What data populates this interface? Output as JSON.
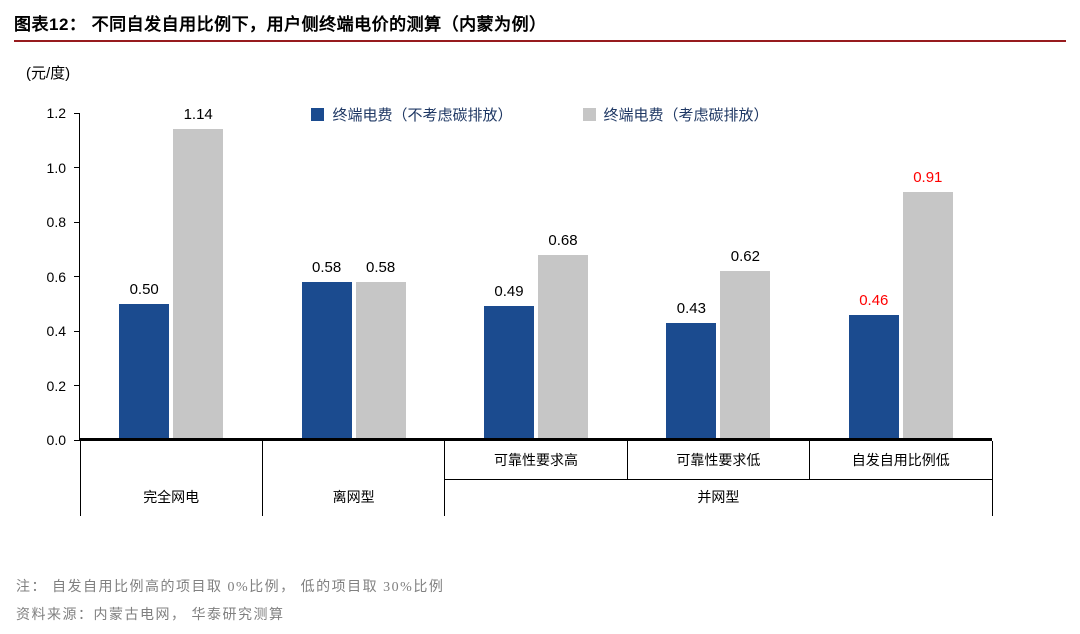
{
  "header": {
    "title": "图表12：  不同自发自用比例下，用户侧终端电价的测算（内蒙为例）",
    "rule_color": "#971B1E"
  },
  "chart_data": {
    "type": "bar",
    "title": "不同自发自用比例下，用户侧终端电价的测算（内蒙为例）",
    "unit_label": "(元/度)",
    "ylim": [
      0,
      1.2
    ],
    "yticks": [
      "1.2",
      "1.0",
      "0.8",
      "0.6",
      "0.4",
      "0.2",
      "0.0"
    ],
    "grid": false,
    "legend_position": "top-center",
    "legend_text_color": "#1F3864",
    "highlight_color": "#FF0000",
    "bar_label_color": "#000000",
    "series": [
      {
        "name": "终端电费（不考虑碳排放）",
        "color": "#1B4B8F",
        "values": [
          0.5,
          0.58,
          0.49,
          0.43,
          0.46
        ]
      },
      {
        "name": "终端电费（考虑碳排放）",
        "color": "#C6C6C6",
        "values": [
          1.14,
          0.58,
          0.68,
          0.62,
          0.91
        ]
      }
    ],
    "categories": [
      {
        "sub_label": "",
        "group_label": "完全网电",
        "highlight": false
      },
      {
        "sub_label": "",
        "group_label": "离网型",
        "highlight": false
      },
      {
        "sub_label": "可靠性要求高",
        "group_label": "并网型",
        "highlight": false
      },
      {
        "sub_label": "可靠性要求低",
        "group_label": "并网型",
        "highlight": false
      },
      {
        "sub_label": "自发自用比例低",
        "group_label": "并网型",
        "highlight": true
      }
    ]
  },
  "footer": {
    "note": "注：  自发自用比例高的项目取 0%比例，  低的项目取 30%比例",
    "source": "资料来源：内蒙古电网，  华泰研究测算"
  }
}
